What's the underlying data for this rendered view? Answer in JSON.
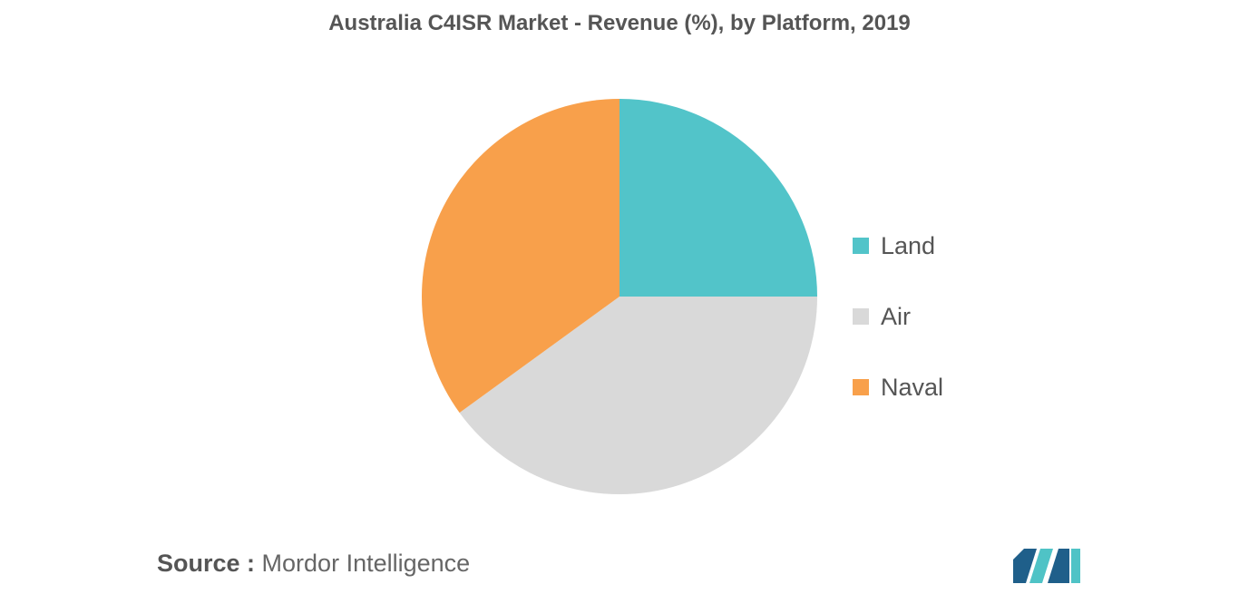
{
  "chart_data": {
    "type": "pie",
    "title": "Australia C4ISR Market - Revenue (%), by Platform, 2019",
    "start_angle": "12 o'clock",
    "direction": "clockwise",
    "slices": [
      {
        "label": "Land",
        "value": 25,
        "color": "#52c4c9"
      },
      {
        "label": "Air",
        "value": 40,
        "color": "#d9d9d9"
      },
      {
        "label": "Naval",
        "value": 35,
        "color": "#f8a04b"
      }
    ],
    "legend_position": "right"
  },
  "source": {
    "prefix": "Source :",
    "text": "Mordor Intelligence"
  },
  "colors": {
    "logo_dark": "#1f5f8a",
    "logo_teal": "#4fc3c6"
  }
}
